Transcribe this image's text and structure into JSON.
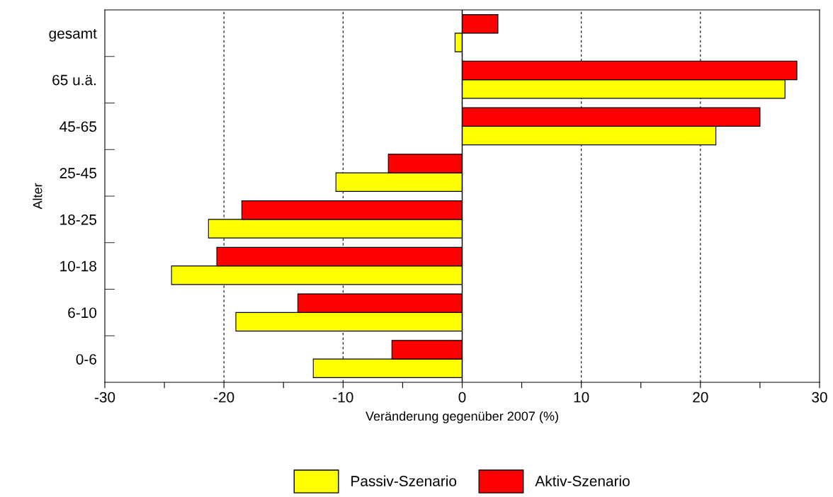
{
  "chart_data": {
    "type": "bar",
    "orientation": "horizontal",
    "xlabel": "Veränderung gegenüber 2007 (%)",
    "ylabel": "Alter",
    "categories": [
      "gesamt",
      "65 u.ä.",
      "45-65",
      "25-45",
      "18-25",
      "10-18",
      "6-10",
      "0-6"
    ],
    "series": [
      {
        "name": "Passiv-Szenario",
        "color": "#ffff00",
        "values": [
          -0.6,
          27.1,
          21.3,
          -10.6,
          -21.3,
          -24.4,
          -19.0,
          -12.5
        ]
      },
      {
        "name": "Aktiv-Szenario",
        "color": "#ff0000",
        "values": [
          3.0,
          28.1,
          25.0,
          -6.2,
          -18.5,
          -20.6,
          -13.8,
          -5.9
        ]
      }
    ],
    "xlim": [
      -30,
      30
    ],
    "xticks": [
      -30,
      {
        "value": -25,
        "label": null
      },
      -20,
      {
        "value": -15,
        "label": null
      },
      -10,
      {
        "value": -5,
        "label": null
      },
      0,
      {
        "value": 5,
        "label": null
      },
      10,
      {
        "value": 15,
        "label": null
      },
      20,
      {
        "value": 25,
        "label": null
      },
      30
    ],
    "grid": "x",
    "legend": "bottom"
  }
}
